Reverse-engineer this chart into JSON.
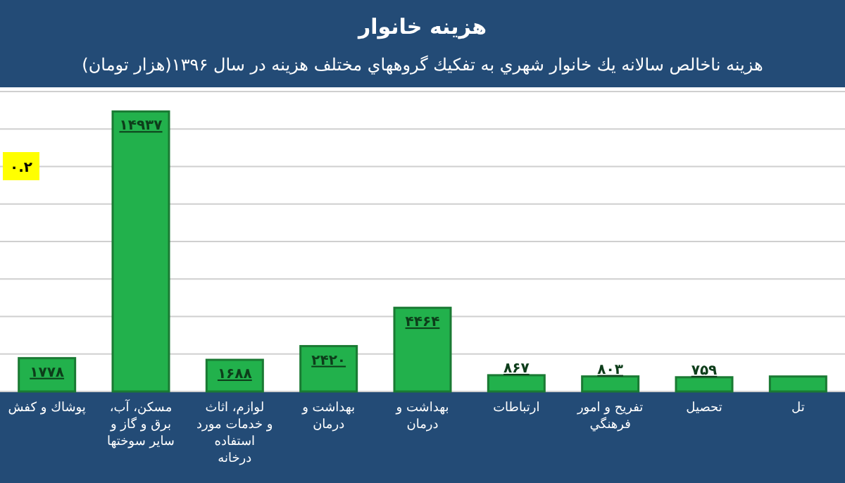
{
  "chart_data": {
    "type": "bar",
    "title": "هزينه خانوار",
    "subtitle": "هزينه ناخالص سالانه يك خانوار شهري به تفكيك گروههاي مختلف هزينه در سال ۱۳۹۶(هزار تومان)",
    "categories": [
      "پوشاك و كفش",
      "مسكن، آب، برق و گاز و ساير سوختها",
      "لوازم، اثاث و خدمات مورد استفاده درخانه",
      "بهداشت و درمان",
      "بهداشت و درمان",
      "ارتباطات",
      "تفريح و امور فرهنگي",
      "تحصيل",
      "تل"
    ],
    "values": [
      1778,
      14937,
      1688,
      2420,
      4464,
      867,
      803,
      759,
      800
    ],
    "value_labels": [
      "۱۷۷۸",
      "۱۴۹۳۷",
      "۱۶۸۸",
      "۲۴۲۰",
      "۴۴۶۴",
      "۸۶۷",
      "۸۰۳",
      "۷۵۹",
      null
    ],
    "color": "#22b14c",
    "ylim": [
      0,
      16000
    ],
    "yticks": [
      {
        "value": 0,
        "label": null
      },
      {
        "value": 2000,
        "label": null
      },
      {
        "value": 4000,
        "label": null
      },
      {
        "value": 6000,
        "label": null
      },
      {
        "value": 8000,
        "label": null
      },
      {
        "value": 10000,
        "label": null
      },
      {
        "value": 12000,
        "label": null
      },
      {
        "value": 14000,
        "label": null
      },
      {
        "value": 16000,
        "label": null
      }
    ],
    "grid": "y",
    "tick_labels": "x",
    "annotations": [
      "۰.۲"
    ]
  }
}
